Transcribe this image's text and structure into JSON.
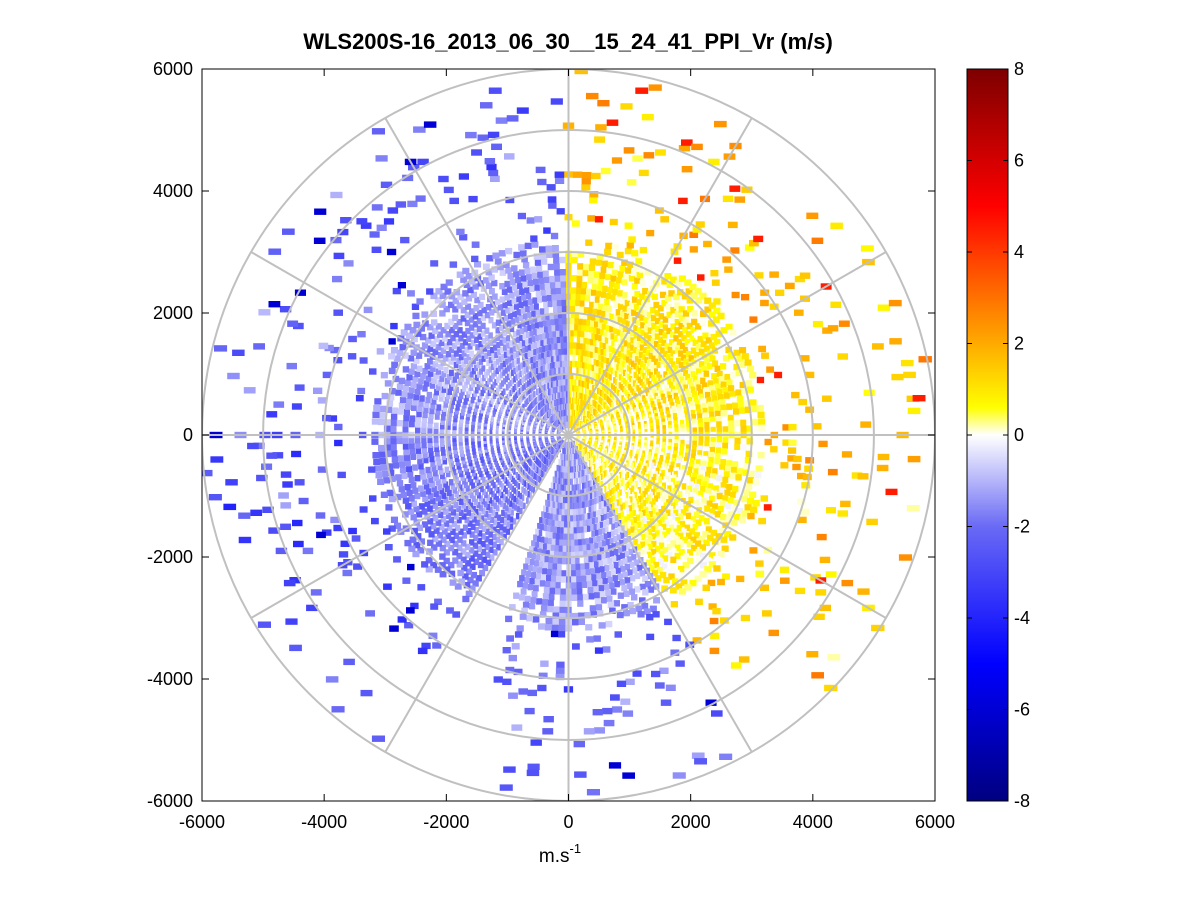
{
  "chart_data": {
    "type": "heatmap",
    "subtype": "polar-ppi",
    "title": "WLS200S-16_2013_06_30__15_24_41_PPI_Vr (m/s)",
    "xlabel_base": "m.s",
    "xlabel_exponent": "-1",
    "ylabel": "",
    "xlim": [
      -6000,
      6000
    ],
    "ylim": [
      -6000,
      6000
    ],
    "x_ticks": [
      -6000,
      -4000,
      -2000,
      0,
      2000,
      4000,
      6000
    ],
    "y_ticks": [
      6000,
      4000,
      2000,
      0,
      -2000,
      -4000,
      -6000
    ],
    "x_tick_labels": [
      "-6000",
      "-4000",
      "-2000",
      "0",
      "2000",
      "4000",
      "6000"
    ],
    "y_tick_labels": [
      "6000",
      "4000",
      "2000",
      "0",
      "-2000",
      "-4000",
      "-6000"
    ],
    "range_rings": [
      1000,
      2000,
      3000,
      4000,
      5000,
      6000
    ],
    "spoke_angles_deg": [
      0,
      30,
      60,
      90,
      120,
      150,
      180,
      210,
      240,
      270,
      300,
      330
    ],
    "grid_color": "#c0c0c0",
    "colorbar": {
      "min": -8,
      "max": 8,
      "ticks": [
        8,
        6,
        4,
        2,
        0,
        -2,
        -4,
        -6,
        -8
      ],
      "tick_labels": [
        "8",
        "6",
        "4",
        "2",
        "0",
        "-2",
        "-4",
        "-6",
        "-8"
      ],
      "colormap_stops": [
        {
          "value": -8,
          "color": "#000080"
        },
        {
          "value": -5,
          "color": "#0000ff"
        },
        {
          "value": -2,
          "color": "#6a6af5"
        },
        {
          "value": 0,
          "color": "#ffffff"
        },
        {
          "value": 0.6,
          "color": "#ffff00"
        },
        {
          "value": 2,
          "color": "#ffaa00"
        },
        {
          "value": 5,
          "color": "#ff0000"
        },
        {
          "value": 8,
          "color": "#7d0000"
        }
      ]
    },
    "velocity_field": {
      "description_units": "m/s",
      "dense_region_max_range_m": 3200,
      "sparse_region_max_range_m": 6000,
      "sector_mean_velocity": [
        {
          "az_start": 0,
          "az_end": 90,
          "mean": 0.8
        },
        {
          "az_start": 90,
          "az_end": 150,
          "mean": 0.6
        },
        {
          "az_start": 150,
          "az_end": 210,
          "mean": -1.3
        },
        {
          "az_start": 210,
          "az_end": 270,
          "mean": -1.8
        },
        {
          "az_start": 270,
          "az_end": 360,
          "mean": -1.4
        }
      ]
    }
  }
}
